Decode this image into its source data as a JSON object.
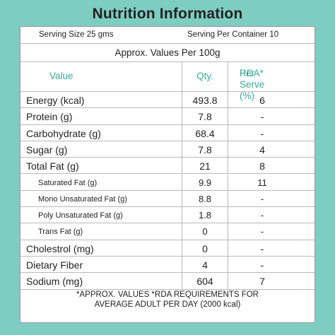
{
  "title": "Nutrition Information",
  "serving": {
    "size": "Serving Size 25 gms",
    "per_container": "Serving Per Container 10"
  },
  "approx_label": "Approx. Values Per 100g",
  "columns": {
    "value": "Value",
    "qty": "Qty.",
    "rda_line1": "Per Serve (%)",
    "rda_line2": "RDA*"
  },
  "rows": [
    {
      "label": "Energy (kcal)",
      "qty": "493.8",
      "rda": "6",
      "sub": false
    },
    {
      "label": "Protein (g)",
      "qty": "7.8",
      "rda": "-",
      "sub": false
    },
    {
      "label": "Carbohydrate (g)",
      "qty": "68.4",
      "rda": "-",
      "sub": false
    },
    {
      "label": "Sugar (g)",
      "qty": "7.8",
      "rda": "4",
      "sub": false
    },
    {
      "label": "Total Fat (g)",
      "qty": "21",
      "rda": "8",
      "sub": false
    },
    {
      "label": "Saturated Fat (g)",
      "qty": "9.9",
      "rda": "11",
      "sub": true
    },
    {
      "label": "Mono Unsaturated Fat (g)",
      "qty": "8.8",
      "rda": "-",
      "sub": true
    },
    {
      "label": "Poly Unsaturated Fat (g)",
      "qty": "1.8",
      "rda": "-",
      "sub": true
    },
    {
      "label": "Trans Fat (g)",
      "qty": "0",
      "rda": "-",
      "sub": true
    },
    {
      "label": "Cholestrol (mg)",
      "qty": "0",
      "rda": "-",
      "sub": false
    },
    {
      "label": "Dietary Fiber",
      "qty": "4",
      "rda": "-",
      "sub": false
    },
    {
      "label": "Sodium (mg)",
      "qty": "604",
      "rda": "7",
      "sub": false
    }
  ],
  "footer": {
    "line1": "*APPROX. VALUES *RDA REQUIREMENTS FOR",
    "line2": "AVERAGE ADULT PER DAY (2000 kcal)"
  }
}
